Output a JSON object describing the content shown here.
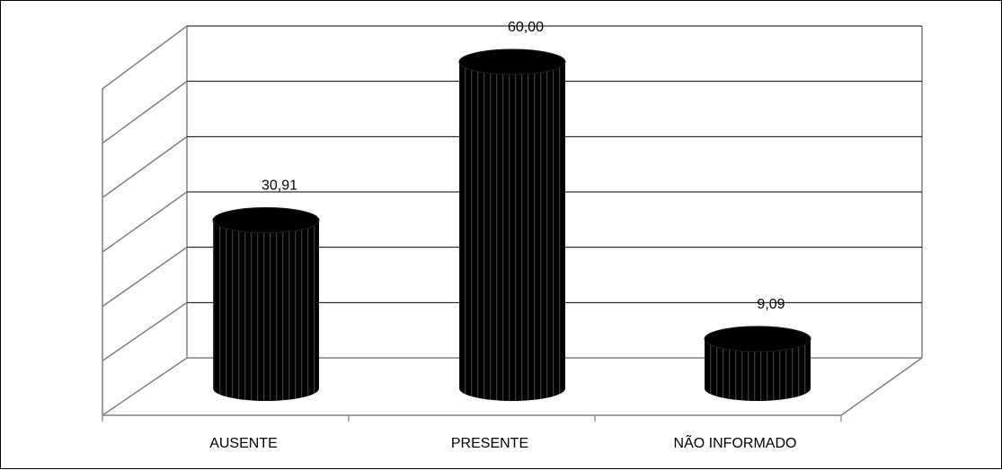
{
  "chart_data": {
    "type": "bar",
    "style": "3d-cylinder",
    "categories": [
      "AUSENTE",
      "PRESENTE",
      "NÃO INFORMADO"
    ],
    "values": [
      30.91,
      60.0,
      9.09
    ],
    "value_labels": [
      "30,91",
      "60,00",
      "9,09"
    ],
    "ylim": [
      0,
      60
    ],
    "grid": true,
    "legend": "none",
    "title": "",
    "xlabel": "",
    "ylabel": "",
    "colors": {
      "bar": "#000000",
      "bar_stripe": "#3a3a3a",
      "gridline": "#000000",
      "wall": "#808080",
      "background": "#ffffff"
    }
  }
}
